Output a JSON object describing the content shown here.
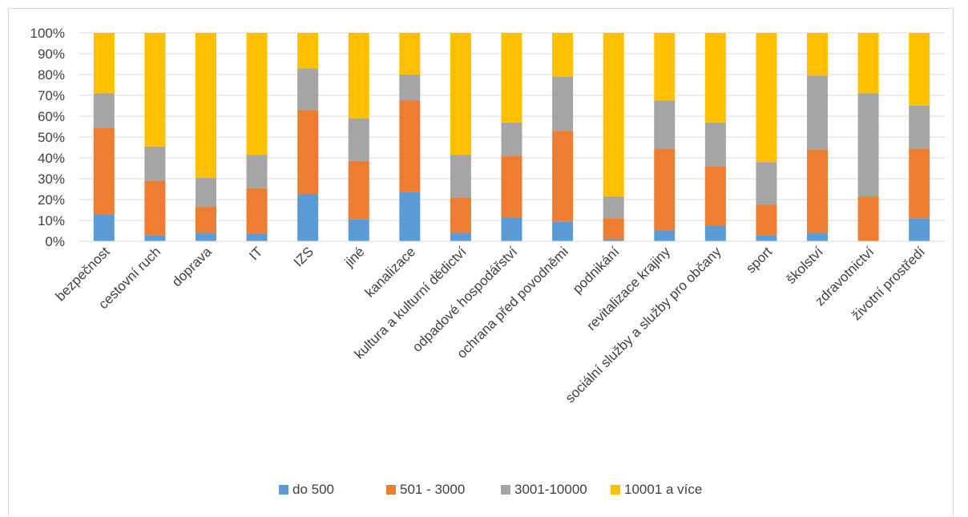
{
  "chart_data": {
    "type": "bar",
    "stacked": true,
    "percent": true,
    "title": "",
    "xlabel": "",
    "ylabel": "",
    "ylim": [
      0,
      100
    ],
    "yticks": [
      "0%",
      "10%",
      "20%",
      "30%",
      "40%",
      "50%",
      "60%",
      "70%",
      "80%",
      "90%",
      "100%"
    ],
    "grid": true,
    "legend_position": "bottom",
    "categories": [
      "bezpečnost",
      "cestovní ruch",
      "doprava",
      "IT",
      "IZS",
      "jiné",
      "kanalizace",
      "kultura a kulturní dědictví",
      "odpadové hospodářství",
      "ochrana před povodněmi",
      "podnikání",
      "revitalizace krajiny",
      "sociální služby a služby pro občany",
      "sport",
      "školství",
      "zdravotnictví",
      "životní prostředí"
    ],
    "series": [
      {
        "name": "do 500",
        "color": "#5b9bd5",
        "values": [
          13,
          3,
          4,
          3.5,
          22.5,
          10.5,
          23.5,
          4,
          11.5,
          9.5,
          1,
          5,
          7.5,
          3,
          4,
          0,
          11
        ]
      },
      {
        "name": "501 - 3000",
        "color": "#ed7d31",
        "values": [
          41.5,
          26,
          12.5,
          22,
          40.5,
          28,
          44,
          17,
          29.5,
          43.5,
          10,
          39.5,
          28.5,
          14.5,
          40,
          21.5,
          33.5
        ]
      },
      {
        "name": "3001-10000",
        "color": "#a5a5a5",
        "values": [
          16.5,
          16.5,
          14,
          16,
          20,
          20.5,
          12.5,
          20.5,
          16,
          26,
          10.5,
          23,
          21,
          20.5,
          35.5,
          49.5,
          20.5
        ]
      },
      {
        "name": "10001 a více",
        "color": "#ffc000",
        "values": [
          29,
          54.5,
          69.5,
          58.5,
          17,
          41,
          20,
          58.5,
          43,
          21,
          78.5,
          32.5,
          43,
          62,
          20.5,
          29,
          35
        ]
      }
    ]
  }
}
